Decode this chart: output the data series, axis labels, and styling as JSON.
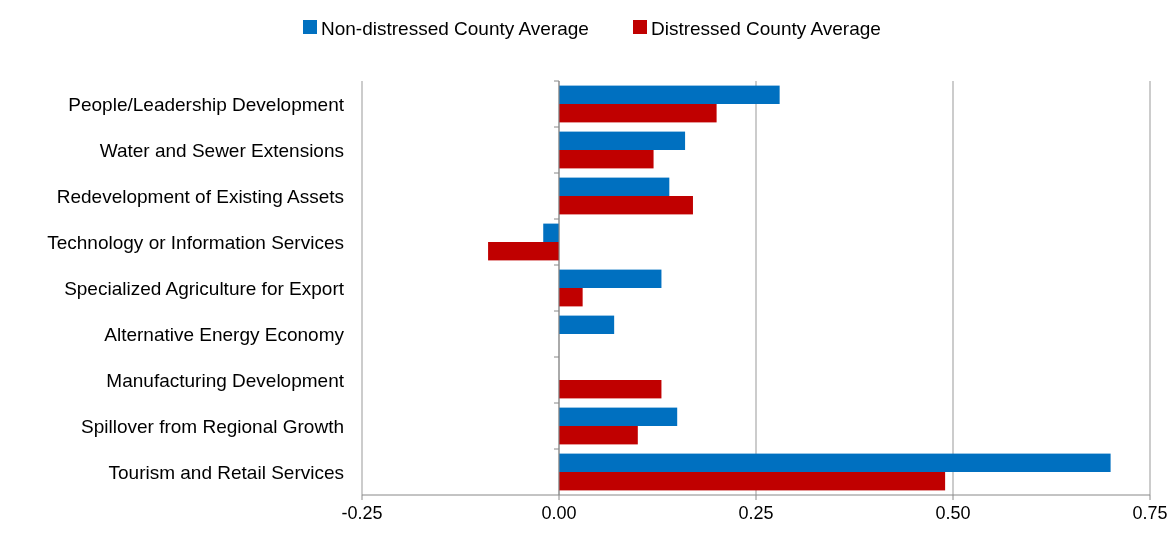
{
  "chart_data": {
    "type": "bar",
    "orientation": "horizontal",
    "categories": [
      "People/Leadership Development",
      "Water and Sewer Extensions",
      "Redevelopment of Existing Assets",
      "Technology or Information Services",
      "Specialized Agriculture for Export",
      "Alternative Energy Economy",
      "Manufacturing Development",
      "Spillover from Regional Growth",
      "Tourism and Retail Services"
    ],
    "series": [
      {
        "name": "Non-distressed County Average",
        "color": "#0070c0",
        "values": [
          0.28,
          0.16,
          0.14,
          -0.02,
          0.13,
          0.07,
          0.0,
          0.15,
          0.7
        ]
      },
      {
        "name": "Distressed County Average",
        "color": "#c00000",
        "values": [
          0.2,
          0.12,
          0.17,
          -0.09,
          0.03,
          0.0,
          0.13,
          0.1,
          0.49
        ]
      }
    ],
    "xlim": [
      -0.25,
      0.75
    ],
    "xticks": [
      -0.25,
      {
        "value": 0,
        "label": "0.00"
      },
      0.25,
      {
        "value": 0.5,
        "label": "0.50"
      },
      0.75
    ],
    "grid": "x",
    "legend": "top"
  }
}
